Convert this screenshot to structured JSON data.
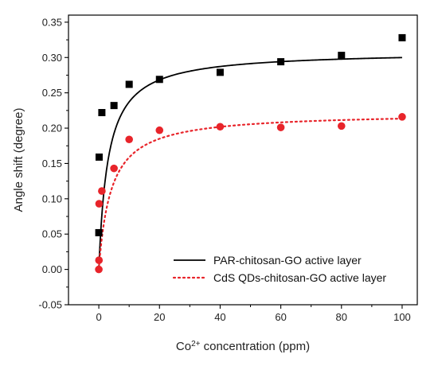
{
  "chart_data": {
    "type": "scatter",
    "title": "",
    "xlabel": {
      "prefix": "Co",
      "sup": "2+",
      "suffix": " concentration (ppm)"
    },
    "ylabel": "Angle shift (degree)",
    "xlim": [
      -10,
      105
    ],
    "ylim": [
      -0.05,
      0.36
    ],
    "xticks": [
      0,
      20,
      40,
      60,
      80,
      100
    ],
    "yticks": [
      -0.05,
      0.0,
      0.05,
      0.1,
      0.15,
      0.2,
      0.25,
      0.3,
      0.35
    ],
    "ytick_labels": [
      "-0.05",
      "0.00",
      "0.05",
      "0.10",
      "0.15",
      "0.20",
      "0.25",
      "0.30",
      "0.35"
    ],
    "grid": false,
    "legend_position": "bottom-right",
    "series": [
      {
        "name": "PAR-chitosan-GO active layer",
        "marker": "square",
        "color": "#000000",
        "line_style": "solid",
        "points": [
          [
            0,
            0.052
          ],
          [
            0.1,
            0.159
          ],
          [
            1,
            0.222
          ],
          [
            5,
            0.232
          ],
          [
            10,
            0.262
          ],
          [
            20,
            0.269
          ],
          [
            40,
            0.279
          ],
          [
            60,
            0.294
          ],
          [
            80,
            0.303
          ],
          [
            100,
            0.328
          ]
        ],
        "fit": {
          "model": "langmuir",
          "max": 0.309,
          "k": 0.33
        }
      },
      {
        "name": "CdS QDs-chitosan-GO active layer",
        "marker": "circle",
        "color": "#e8242a",
        "line_style": "dotted",
        "points": [
          [
            0,
            0.0
          ],
          [
            0.05,
            0.013
          ],
          [
            0.1,
            0.093
          ],
          [
            1,
            0.111
          ],
          [
            5,
            0.143
          ],
          [
            10,
            0.184
          ],
          [
            20,
            0.197
          ],
          [
            40,
            0.202
          ],
          [
            60,
            0.201
          ],
          [
            80,
            0.203
          ],
          [
            100,
            0.216
          ]
        ],
        "fit": {
          "model": "langmuir",
          "max": 0.222,
          "k": 0.25
        }
      }
    ]
  }
}
